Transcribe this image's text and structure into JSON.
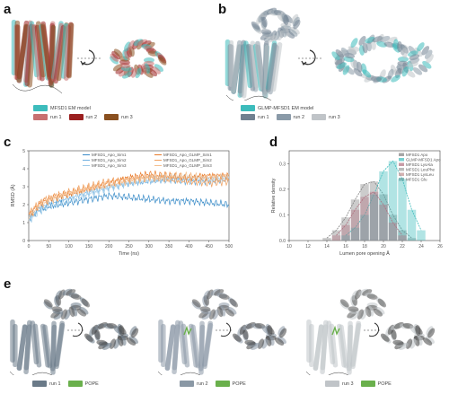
{
  "panels": {
    "a": {
      "letter": "a",
      "legend_model": "MFSD1 EM model",
      "runs": [
        "run 1",
        "run 2",
        "run 3"
      ],
      "colors": {
        "model": "#3dbcbc",
        "run1": "#c87070",
        "run2": "#9b2020",
        "run3": "#8a5020"
      }
    },
    "b": {
      "letter": "b",
      "legend_model": "GLMP-MFSD1 EM model",
      "runs": [
        "run 1",
        "run 2",
        "run 3"
      ],
      "colors": {
        "model": "#3dbcbc",
        "run1": "#708090",
        "run2": "#8a9aa8",
        "run3": "#c0c4c8"
      }
    },
    "c": {
      "letter": "c"
    },
    "d": {
      "letter": "d"
    },
    "e": {
      "letter": "e",
      "structures": [
        {
          "run": "run 1",
          "lipid": "POPE",
          "run_color": "#6a7a88"
        },
        {
          "run": "run 2",
          "lipid": "POPE",
          "run_color": "#8a98a5"
        },
        {
          "run": "run 3",
          "lipid": "POPE",
          "run_color": "#c0c4c8"
        }
      ],
      "lipid_color": "#6ab04c"
    }
  },
  "chart_data": [
    {
      "type": "line",
      "panel": "c",
      "xlabel": "Time (ns)",
      "ylabel": "RMSD (Å)",
      "xlim": [
        0,
        500
      ],
      "ylim": [
        0,
        5
      ],
      "xticks": [
        0,
        50,
        100,
        150,
        200,
        250,
        300,
        350,
        400,
        450,
        500
      ],
      "yticks": [
        0,
        1,
        2,
        3,
        4,
        5
      ],
      "legend": "top",
      "series": [
        {
          "name": "MFSD1_Apo_Sim1",
          "color": "#3a8cc8",
          "x": [
            0,
            25,
            50,
            100,
            150,
            200,
            250,
            300,
            350,
            400,
            450,
            500
          ],
          "values": [
            1.2,
            1.7,
            1.9,
            2.1,
            2.3,
            2.5,
            2.4,
            2.3,
            2.2,
            2.2,
            2.1,
            2.0
          ]
        },
        {
          "name": "MFSD1_Apo_Sim2",
          "color": "#6fb0e0",
          "x": [
            0,
            25,
            50,
            100,
            150,
            200,
            250,
            300,
            350,
            400,
            450,
            500
          ],
          "values": [
            1.3,
            1.8,
            2.1,
            2.4,
            2.7,
            3.0,
            3.2,
            3.3,
            3.4,
            3.3,
            3.3,
            3.4
          ]
        },
        {
          "name": "MFSD1_Apo_Sim3",
          "color": "#9fcbe8",
          "x": [
            0,
            25,
            50,
            100,
            150,
            200,
            250,
            300,
            350,
            400,
            450,
            500
          ],
          "values": [
            1.1,
            1.6,
            1.9,
            2.2,
            2.6,
            2.9,
            3.2,
            3.4,
            3.5,
            3.5,
            3.4,
            3.5
          ]
        },
        {
          "name": "MFSD1_Apo_GLMP_Sim1",
          "color": "#e87a2a",
          "x": [
            0,
            25,
            50,
            100,
            150,
            200,
            250,
            300,
            350,
            400,
            450,
            500
          ],
          "values": [
            1.4,
            2.0,
            2.3,
            2.6,
            2.9,
            3.2,
            3.5,
            3.7,
            3.6,
            3.5,
            3.6,
            3.6
          ]
        },
        {
          "name": "MFSD1_Apo_GLMP_Sim2",
          "color": "#f0a060",
          "x": [
            0,
            25,
            50,
            100,
            150,
            200,
            250,
            300,
            350,
            400,
            450,
            500
          ],
          "values": [
            1.5,
            2.1,
            2.4,
            2.7,
            3.0,
            3.3,
            3.4,
            3.5,
            3.4,
            3.3,
            3.2,
            3.3
          ]
        },
        {
          "name": "MFSD1_Apo_GLMP_Sim3",
          "color": "#f5c090",
          "x": [
            0,
            25,
            50,
            100,
            150,
            200,
            250,
            300,
            350,
            400,
            450,
            500
          ],
          "values": [
            1.3,
            1.9,
            2.2,
            2.6,
            2.9,
            3.1,
            3.3,
            3.5,
            3.6,
            3.6,
            3.5,
            3.6
          ]
        }
      ]
    },
    {
      "type": "bar",
      "panel": "d",
      "xlabel": "Lumen pore opening Å",
      "ylabel": "Relative density",
      "xlim": [
        10,
        26
      ],
      "ylim": [
        0,
        0.35
      ],
      "xticks": [
        10,
        12,
        14,
        16,
        18,
        20,
        22,
        24,
        26
      ],
      "yticks": [
        0.0,
        0.1,
        0.2,
        0.3
      ],
      "legend": "top-right",
      "series": [
        {
          "name": "MFSD1 Apo",
          "color": "#808080",
          "x": [
            14,
            15,
            16,
            17,
            18,
            19,
            20,
            21,
            22,
            23
          ],
          "values": [
            0.01,
            0.04,
            0.09,
            0.16,
            0.22,
            0.23,
            0.18,
            0.1,
            0.04,
            0.01
          ]
        },
        {
          "name": "GLMP-MFSD1 Apo",
          "color": "#3dbcbc",
          "x": [
            16,
            17,
            18,
            19,
            20,
            21,
            22,
            23,
            24
          ],
          "values": [
            0.02,
            0.05,
            0.1,
            0.18,
            0.27,
            0.31,
            0.24,
            0.12,
            0.04
          ]
        },
        {
          "name": "MFSD1 LysAla",
          "color": "#b07080",
          "x": [
            15,
            16,
            17,
            18,
            19,
            20,
            21,
            22
          ],
          "values": [
            0.02,
            0.06,
            0.12,
            0.17,
            0.19,
            0.14,
            0.07,
            0.02
          ]
        }
      ],
      "legend_entries": [
        "MFSD1 Apo",
        "GLMP-MFSD1 Apo",
        "MFSD1 LysAla",
        "MFSD1 LeuPhe",
        "MFSD1 LysLeu",
        "MFSD1 Glu"
      ]
    }
  ]
}
